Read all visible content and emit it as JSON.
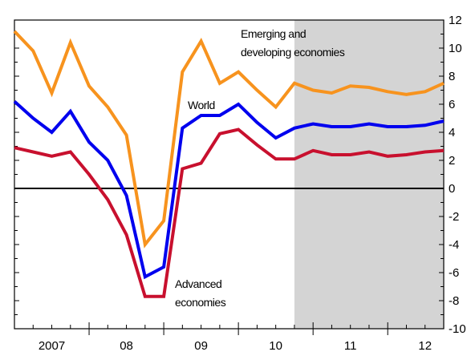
{
  "chart_data": {
    "type": "line",
    "title": "",
    "xlabel": "",
    "ylabel": "",
    "xlim": [
      2007.0,
      2012.75
    ],
    "ylim": [
      -10,
      12
    ],
    "yticks": [
      -10,
      -8,
      -6,
      -4,
      -2,
      0,
      2,
      4,
      6,
      8,
      10,
      12
    ],
    "ytick_labels": [
      "-10",
      "-8",
      "-6",
      "-4",
      "-2",
      "0",
      "2",
      "4",
      "6",
      "8",
      "10",
      "12"
    ],
    "xtick_labels": [
      {
        "label": "2007",
        "x": 2007.5
      },
      {
        "label": "08",
        "x": 2008.5
      },
      {
        "label": "09",
        "x": 2009.5
      },
      {
        "label": "10",
        "x": 2010.5
      },
      {
        "label": "11",
        "x": 2011.5
      },
      {
        "label": "12",
        "x": 2012.5
      }
    ],
    "year_boundaries": [
      2008,
      2009,
      2010,
      2011,
      2012
    ],
    "forecast_shading": {
      "start": 2010.75,
      "end": 2012.75,
      "color": "#d4d4d4"
    },
    "zero_line": true,
    "grid": false,
    "series": [
      {
        "name": "Emerging and developing economies",
        "color": "#f7931e",
        "x": [
          2007.0,
          2007.25,
          2007.5,
          2007.75,
          2008.0,
          2008.25,
          2008.5,
          2008.75,
          2009.0,
          2009.25,
          2009.5,
          2009.75,
          2010.0,
          2010.25,
          2010.5,
          2010.75,
          2011.0,
          2011.25,
          2011.5,
          2011.75,
          2012.0,
          2012.25,
          2012.5,
          2012.75
        ],
        "values": [
          11.2,
          9.8,
          6.8,
          10.4,
          7.3,
          5.8,
          3.8,
          -4.0,
          -2.3,
          8.3,
          10.5,
          7.5,
          8.3,
          7.0,
          5.8,
          7.5,
          7.0,
          6.8,
          7.3,
          7.2,
          6.9,
          6.7,
          6.9,
          7.5
        ]
      },
      {
        "name": "World",
        "color": "#0000ee",
        "x": [
          2007.0,
          2007.25,
          2007.5,
          2007.75,
          2008.0,
          2008.25,
          2008.5,
          2008.75,
          2009.0,
          2009.25,
          2009.5,
          2009.75,
          2010.0,
          2010.25,
          2010.5,
          2010.75,
          2011.0,
          2011.25,
          2011.5,
          2011.75,
          2012.0,
          2012.25,
          2012.5,
          2012.75
        ],
        "values": [
          6.2,
          5.0,
          4.0,
          5.5,
          3.3,
          2.0,
          -0.5,
          -6.3,
          -5.6,
          4.3,
          5.2,
          5.2,
          6.0,
          4.7,
          3.6,
          4.3,
          4.6,
          4.4,
          4.4,
          4.6,
          4.4,
          4.4,
          4.5,
          4.8
        ]
      },
      {
        "name": "Advanced economies",
        "color": "#c8102e",
        "x": [
          2007.0,
          2007.25,
          2007.5,
          2007.75,
          2008.0,
          2008.25,
          2008.5,
          2008.75,
          2009.0,
          2009.25,
          2009.5,
          2009.75,
          2010.0,
          2010.25,
          2010.5,
          2010.75,
          2011.0,
          2011.25,
          2011.5,
          2011.75,
          2012.0,
          2012.25,
          2012.5,
          2012.75
        ],
        "values": [
          2.9,
          2.6,
          2.3,
          2.6,
          1.0,
          -0.8,
          -3.3,
          -7.7,
          -7.7,
          1.4,
          1.8,
          3.9,
          4.2,
          3.1,
          2.1,
          2.1,
          2.7,
          2.4,
          2.4,
          2.6,
          2.3,
          2.4,
          2.6,
          2.7
        ]
      }
    ],
    "annotations": [
      {
        "lines": [
          "Emerging and",
          "developing economies"
        ],
        "series": "Emerging and developing economies"
      },
      {
        "lines": [
          "World"
        ],
        "series": "World"
      },
      {
        "lines": [
          "Advanced",
          "economies"
        ],
        "series": "Advanced economies"
      }
    ]
  }
}
